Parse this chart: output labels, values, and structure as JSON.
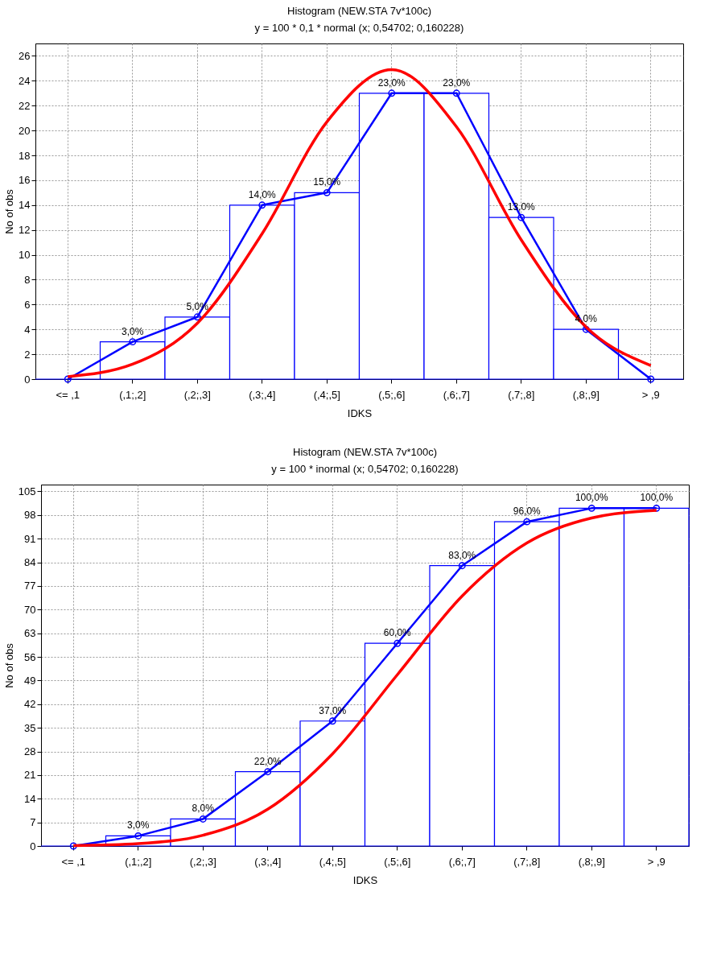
{
  "chart_data": [
    {
      "type": "bar",
      "title": "Histogram (NEW.STA 7v*100c)",
      "subtitle": "y = 100 * 0,1 * normal (x; 0,54702; 0,160228)",
      "xlabel": "IDKS",
      "ylabel": "No of obs",
      "categories": [
        "<= ,1",
        "(,1;,2]",
        "(,2;,3]",
        "(,3;,4]",
        "(,4;,5]",
        "(,5;,6]",
        "(,6;,7]",
        "(,7;,8]",
        "(,8;,9]",
        "> ,9"
      ],
      "ylim": [
        0,
        27
      ],
      "yticks": [
        0,
        2,
        4,
        6,
        8,
        10,
        12,
        14,
        16,
        18,
        20,
        22,
        24,
        26
      ],
      "grid": true,
      "series": [
        {
          "type": "bar",
          "color": "#0000ff",
          "values": [
            0,
            3,
            5,
            14,
            15,
            23,
            23,
            13,
            4,
            0
          ],
          "value_labels": [
            null,
            "3,0%",
            "5,0%",
            "14,0%",
            "15,0%",
            "23,0%",
            "23,0%",
            "13,0%",
            "4,0%",
            null
          ]
        },
        {
          "type": "line",
          "color": "#0000ff",
          "marker": "circle",
          "values": [
            0,
            3,
            5,
            14,
            15,
            23,
            23,
            13,
            4,
            0
          ]
        },
        {
          "type": "line",
          "color": "#ff0000",
          "marker": "none",
          "values": [
            0.2,
            1.2,
            4.5,
            11.7,
            20.7,
            24.9,
            20.3,
            11.2,
            4.2,
            1.1
          ]
        }
      ]
    },
    {
      "type": "bar",
      "title": "Histogram (NEW.STA 7v*100c)",
      "subtitle": "y = 100 * inormal (x; 0,54702; 0,160228)",
      "xlabel": "IDKS",
      "ylabel": "No of obs",
      "categories": [
        "<= ,1",
        "(,1;,2]",
        "(,2;,3]",
        "(,3;,4]",
        "(,4;,5]",
        "(,5;,6]",
        "(,6;,7]",
        "(,7;,8]",
        "(,8;,9]",
        "> ,9"
      ],
      "ylim": [
        0,
        107
      ],
      "yticks": [
        0,
        7,
        14,
        21,
        28,
        35,
        42,
        49,
        56,
        63,
        70,
        77,
        84,
        91,
        98,
        105
      ],
      "grid": true,
      "series": [
        {
          "type": "bar",
          "color": "#0000ff",
          "values": [
            0,
            3,
            8,
            22,
            37,
            60,
            83,
            96,
            100,
            100
          ],
          "value_labels": [
            null,
            "3,0%",
            "8,0%",
            "22,0%",
            "37,0%",
            "60,0%",
            "83,0%",
            "96,0%",
            "100,0%",
            "100,0%"
          ]
        },
        {
          "type": "line",
          "color": "#0000ff",
          "marker": "circle",
          "values": [
            0,
            3,
            8,
            22,
            37,
            60,
            83,
            96,
            100,
            100
          ]
        },
        {
          "type": "line",
          "color": "#ff0000",
          "marker": "none",
          "values": [
            0.1,
            0.7,
            3.2,
            10.9,
            27.3,
            50.7,
            74.0,
            89.7,
            97.1,
            99.4
          ]
        }
      ]
    }
  ]
}
